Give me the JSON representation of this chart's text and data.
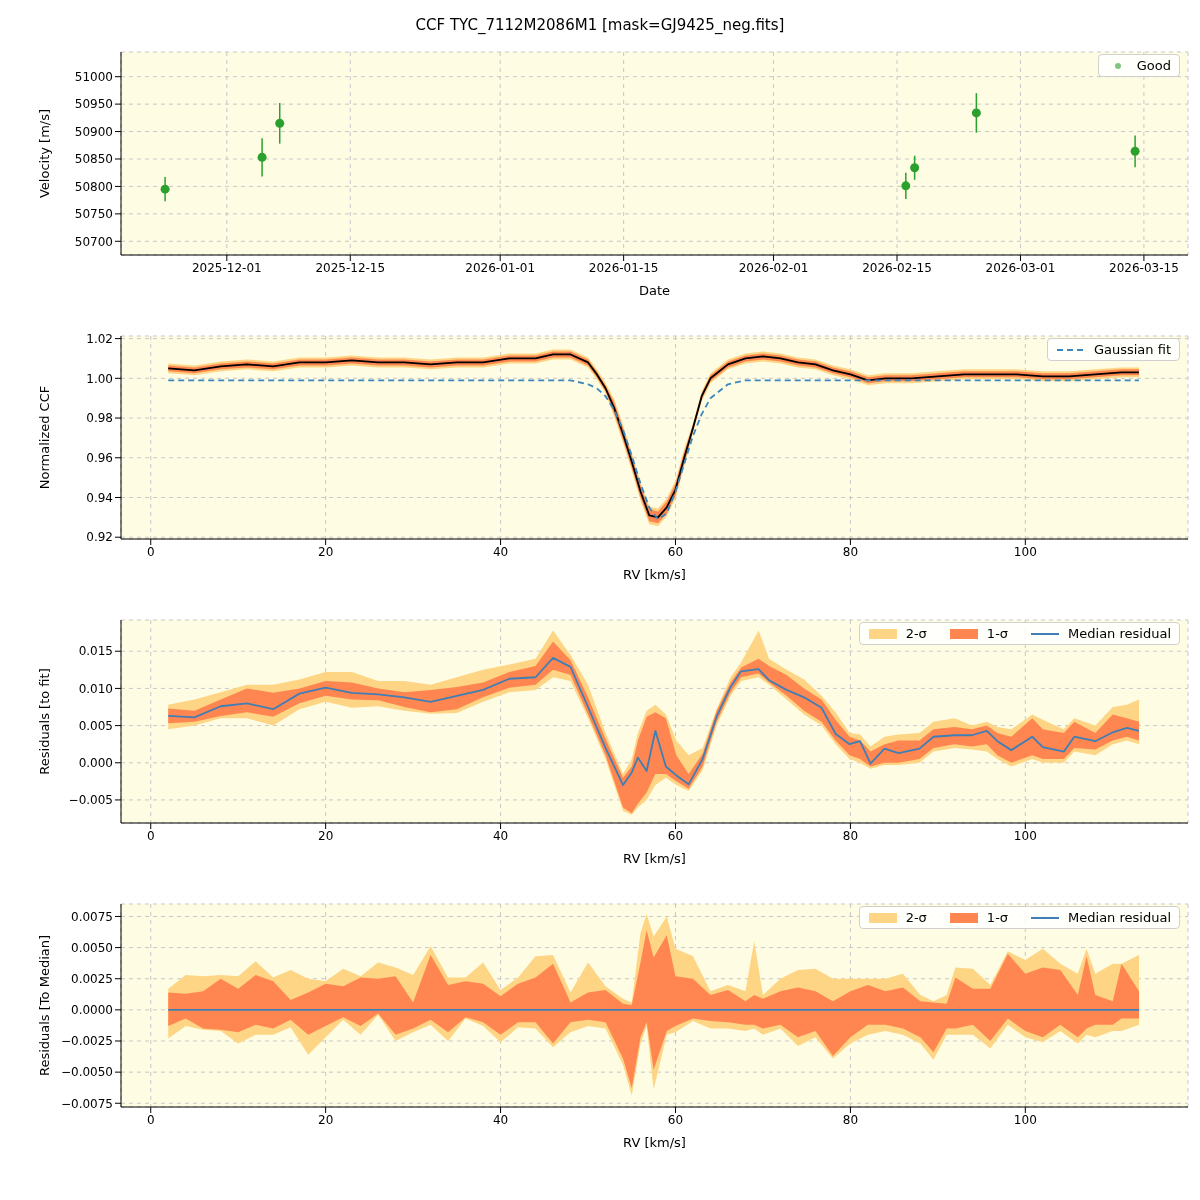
{
  "chart_data": [
    {
      "type": "scatter",
      "title": "CCF TYC_7112M2086M1 [mask=GJ9425_neg.fits]",
      "xlabel": "Date",
      "ylabel": "Velocity [m/s]",
      "x": [
        "2025-11-24",
        "2025-12-05",
        "2025-12-07",
        "2026-02-16",
        "2026-02-17",
        "2026-02-24",
        "2026-03-14"
      ],
      "series": [
        {
          "name": "Good",
          "color": "#2ca02c",
          "values": [
            50795,
            50853,
            50915,
            50801,
            50834,
            50934,
            50864
          ],
          "errors": [
            22,
            35,
            37,
            24,
            22,
            36,
            29
          ]
        }
      ],
      "xlim": [
        "2025-11-19",
        "2026-03-20"
      ],
      "xticks": [
        "2025-12-01",
        "2025-12-15",
        "2026-01-01",
        "2026-01-15",
        "2026-02-01",
        "2026-02-15",
        "2026-03-01",
        "2026-03-15"
      ],
      "ylim": [
        50675,
        51045
      ],
      "yticks": [
        50700,
        50750,
        50800,
        50850,
        50900,
        50950,
        51000
      ],
      "grid": true,
      "legend": "top right",
      "marker": "circle"
    },
    {
      "type": "line",
      "xlabel": "RV [km/s]",
      "ylabel": "Normalized CCF",
      "x": [
        2,
        5,
        8,
        11,
        14,
        17,
        20,
        23,
        26,
        29,
        32,
        35,
        38,
        41,
        44,
        46,
        48,
        50,
        51,
        52,
        53,
        54,
        55,
        56,
        57,
        58,
        59,
        60,
        61,
        62,
        63,
        64,
        66,
        68,
        70,
        72,
        74,
        76,
        78,
        80,
        82,
        84,
        87,
        90,
        93,
        96,
        99,
        102,
        105,
        108,
        111,
        113
      ],
      "series": [
        {
          "type": "area",
          "color": "#fdd585",
          "values": [
            null,
            null,
            null,
            null,
            null,
            null,
            null,
            null,
            null,
            null,
            null,
            null,
            null,
            null,
            null,
            null,
            null,
            null,
            null,
            null,
            null,
            null,
            null,
            null,
            null,
            null,
            null,
            null,
            null,
            null,
            null,
            null,
            null,
            null,
            null,
            null,
            null,
            null,
            null,
            null,
            null,
            null,
            null,
            null,
            null,
            null,
            null,
            null,
            null,
            null,
            null,
            null
          ],
          "lower": [
            1.0025,
            1.0015,
            1.0035,
            1.0045,
            1.0035,
            1.0055,
            1.0055,
            1.0065,
            1.0055,
            1.0055,
            1.0045,
            1.0055,
            1.0055,
            1.0075,
            1.0075,
            1.0095,
            1.0095,
            1.0055,
            0.9995,
            0.9925,
            0.9805,
            0.9675,
            0.9535,
            0.9385,
            0.9265,
            0.9255,
            0.9305,
            0.9395,
            0.9555,
            0.9725,
            0.9885,
            0.9975,
            1.0045,
            1.0075,
            1.0085,
            1.0075,
            1.0055,
            1.0045,
            1.0015,
            0.9995,
            0.9965,
            0.9975,
            0.9975,
            0.9985,
            0.9995,
            0.9995,
            0.9995,
            0.9985,
            0.9985,
            0.9995,
            1.0005,
            1.0005
          ],
          "upper": [
            1.0075,
            1.0065,
            1.0085,
            1.0095,
            1.0085,
            1.0105,
            1.0105,
            1.0115,
            1.0105,
            1.0105,
            1.0095,
            1.0105,
            1.0105,
            1.0125,
            1.0125,
            1.0145,
            1.0145,
            1.0105,
            1.0045,
            0.9975,
            0.9895,
            0.9765,
            0.9625,
            0.9475,
            0.9355,
            0.9345,
            0.9395,
            0.9485,
            0.9645,
            0.9775,
            0.9935,
            1.0025,
            1.0095,
            1.0125,
            1.0135,
            1.0125,
            1.0105,
            1.0095,
            1.0065,
            1.0045,
            1.0015,
            1.0025,
            1.0025,
            1.0035,
            1.0045,
            1.0045,
            1.0045,
            1.0035,
            1.0035,
            1.0045,
            1.0055,
            1.0055
          ]
        },
        {
          "type": "area",
          "color": "#ff8650",
          "values": [
            null,
            null,
            null,
            null,
            null,
            null,
            null,
            null,
            null,
            null,
            null,
            null,
            null,
            null,
            null,
            null,
            null,
            null,
            null,
            null,
            null,
            null,
            null,
            null,
            null,
            null,
            null,
            null,
            null,
            null,
            null,
            null,
            null,
            null,
            null,
            null,
            null,
            null,
            null,
            null,
            null,
            null,
            null,
            null,
            null,
            null,
            null,
            null,
            null,
            null,
            null,
            null
          ],
          "lower": [
            1.0035,
            1.0025,
            1.0045,
            1.0055,
            1.0045,
            1.0065,
            1.0065,
            1.0075,
            1.0065,
            1.0065,
            1.0055,
            1.0065,
            1.0065,
            1.0085,
            1.0085,
            1.0105,
            1.0105,
            1.0065,
            1.0005,
            0.9935,
            0.982,
            0.969,
            0.955,
            0.94,
            0.928,
            0.927,
            0.932,
            0.941,
            0.957,
            0.9735,
            0.9895,
            0.9985,
            1.0055,
            1.0085,
            1.0095,
            1.0085,
            1.0065,
            1.0055,
            1.0025,
            1.0005,
            0.9975,
            0.9985,
            0.9985,
            0.9995,
            1.0005,
            1.0005,
            1.0005,
            0.9995,
            0.9995,
            1.0005,
            1.0015,
            1.0015
          ],
          "upper": [
            1.0065,
            1.0055,
            1.0075,
            1.0085,
            1.0075,
            1.0095,
            1.0095,
            1.0105,
            1.0095,
            1.0095,
            1.0085,
            1.0095,
            1.0095,
            1.0115,
            1.0115,
            1.0135,
            1.0135,
            1.0095,
            1.0035,
            0.9965,
            0.988,
            0.975,
            0.961,
            0.946,
            0.934,
            0.933,
            0.938,
            0.947,
            0.963,
            0.9765,
            0.9925,
            1.0015,
            1.0085,
            1.0115,
            1.0125,
            1.0115,
            1.0095,
            1.0085,
            1.0055,
            1.0035,
            1.0005,
            1.0015,
            1.0015,
            1.0025,
            1.0035,
            1.0035,
            1.0035,
            1.0025,
            1.0025,
            1.0035,
            1.0045,
            1.0045
          ]
        },
        {
          "color": "#000000",
          "values": [
            1.005,
            1.004,
            1.006,
            1.007,
            1.006,
            1.008,
            1.008,
            1.009,
            1.008,
            1.008,
            1.007,
            1.008,
            1.008,
            1.01,
            1.01,
            1.012,
            1.012,
            1.008,
            1.002,
            0.995,
            0.985,
            0.972,
            0.958,
            0.943,
            0.931,
            0.93,
            0.935,
            0.944,
            0.96,
            0.975,
            0.991,
            1.0,
            1.007,
            1.01,
            1.011,
            1.01,
            1.008,
            1.007,
            1.004,
            1.002,
            0.999,
            1.0,
            1.0,
            1.001,
            1.002,
            1.002,
            1.002,
            1.001,
            1.001,
            1.002,
            1.003,
            1.003
          ]
        },
        {
          "name": "Gaussian fit",
          "color": "#3a87c0",
          "line_style": "dashed",
          "values": [
            0.999,
            0.999,
            0.999,
            0.999,
            0.999,
            0.999,
            0.999,
            0.999,
            0.999,
            0.999,
            0.999,
            0.999,
            0.999,
            0.999,
            0.999,
            0.999,
            0.999,
            0.997,
            0.995,
            0.991,
            0.984,
            0.974,
            0.961,
            0.947,
            0.935,
            0.929,
            0.932,
            0.943,
            0.957,
            0.971,
            0.982,
            0.99,
            0.997,
            0.999,
            0.999,
            0.999,
            0.999,
            0.999,
            0.999,
            0.999,
            0.999,
            0.999,
            0.999,
            0.999,
            0.999,
            0.999,
            0.999,
            0.999,
            0.999,
            0.999,
            0.999,
            0.999
          ]
        }
      ],
      "xlim": [
        -3.4,
        118.6
      ],
      "xticks": [
        0,
        20,
        40,
        60,
        80,
        100
      ],
      "ylim": [
        0.9191,
        1.0213
      ],
      "yticks": [
        {
          "value": 0.92,
          "label": "0.92"
        },
        {
          "value": 0.94,
          "label": "0.94"
        },
        {
          "value": 0.96,
          "label": "0.96"
        },
        {
          "value": 0.98,
          "label": "0.98"
        },
        {
          "value": 1.0,
          "label": "1.00"
        },
        {
          "value": 1.02,
          "label": "1.02"
        }
      ],
      "grid": true,
      "legend": "top right"
    },
    {
      "type": "line",
      "xlabel": "RV [km/s]",
      "ylabel": "Residuals [to fit]",
      "x": [
        2,
        5,
        8,
        11,
        14,
        17,
        20,
        23,
        26,
        29,
        32,
        35,
        38,
        41,
        44,
        46,
        48,
        50,
        52,
        54,
        55,
        55.7,
        56.7,
        57.7,
        58.9,
        60.1,
        61.5,
        63.1,
        64.7,
        66.3,
        67.5,
        69.5,
        70.7,
        72.7,
        74.7,
        76.7,
        78.3,
        79.9,
        81.1,
        82.3,
        83.9,
        85.5,
        87.9,
        89.5,
        91.9,
        93.9,
        95.6,
        96.8,
        98.4,
        100.8,
        102,
        104.4,
        105.6,
        108,
        110,
        111.6,
        113
      ],
      "series": [
        {
          "type": "area",
          "name": "2-σ",
          "color": "#fdd585",
          "values": [
            null,
            null,
            null,
            null,
            null,
            null,
            null,
            null,
            null,
            null,
            null,
            null,
            null,
            null,
            null,
            null,
            null,
            null,
            null,
            null,
            null,
            null,
            null,
            null,
            null,
            null,
            null,
            null,
            null,
            null,
            null,
            null,
            null,
            null,
            null,
            null,
            null,
            null,
            null,
            null,
            null,
            null,
            null,
            null,
            null,
            null,
            null,
            null,
            null,
            null,
            null,
            null,
            null,
            null,
            null,
            null,
            null
          ],
          "lower": [
            0.0045,
            0.005,
            0.006,
            0.006,
            0.005,
            0.0072,
            0.0082,
            0.0074,
            0.0076,
            0.007,
            0.0066,
            0.0067,
            0.0082,
            0.0095,
            0.0098,
            0.0115,
            0.011,
            0.006,
            0.0005,
            -0.0065,
            -0.007,
            -0.006,
            -0.005,
            -0.003,
            -0.002,
            -0.003,
            -0.0038,
            -0.001,
            0.005,
            0.009,
            0.011,
            0.0115,
            0.0105,
            0.0085,
            0.0065,
            0.005,
            0.0025,
            0.0005,
            0.0,
            -0.0008,
            -0.0003,
            -0.0003,
            0.0,
            0.0015,
            0.002,
            0.0018,
            0.0015,
            0.0005,
            -0.0005,
            0.0005,
            0.0,
            0.0,
            0.0015,
            0.001,
            0.0025,
            0.003,
            0.0025
          ],
          "upper": [
            0.0078,
            0.0085,
            0.0095,
            0.0105,
            0.0105,
            0.0112,
            0.0122,
            0.0122,
            0.011,
            0.011,
            0.0105,
            0.0115,
            0.0125,
            0.0132,
            0.014,
            0.0178,
            0.0145,
            0.0105,
            0.004,
            -0.0015,
            0.0005,
            0.004,
            0.007,
            0.0078,
            0.0065,
            0.003,
            0.001,
            0.002,
            0.0072,
            0.0115,
            0.0135,
            0.0178,
            0.014,
            0.0125,
            0.0112,
            0.009,
            0.0068,
            0.004,
            0.0038,
            0.0022,
            0.0035,
            0.0038,
            0.004,
            0.0055,
            0.006,
            0.005,
            0.0055,
            0.0048,
            0.0045,
            0.0065,
            0.0058,
            0.0045,
            0.006,
            0.005,
            0.0075,
            0.0078,
            0.0085
          ]
        },
        {
          "type": "area",
          "name": "1-σ",
          "color": "#ff8650",
          "values": [
            null,
            null,
            null,
            null,
            null,
            null,
            null,
            null,
            null,
            null,
            null,
            null,
            null,
            null,
            null,
            null,
            null,
            null,
            null,
            null,
            null,
            null,
            null,
            null,
            null,
            null,
            null,
            null,
            null,
            null,
            null,
            null,
            null,
            null,
            null,
            null,
            null,
            null,
            null,
            null,
            null,
            null,
            null,
            null,
            null,
            null,
            null,
            null,
            null,
            null,
            null,
            null,
            null,
            null,
            null,
            null,
            null
          ],
          "lower": [
            0.0053,
            0.0055,
            0.0063,
            0.0068,
            0.0062,
            0.008,
            0.009,
            0.0085,
            0.0084,
            0.0075,
            0.0068,
            0.0072,
            0.0088,
            0.0101,
            0.0105,
            0.0125,
            0.0118,
            0.0065,
            0.001,
            -0.006,
            -0.0068,
            -0.0055,
            -0.004,
            -0.0015,
            -0.0015,
            -0.0025,
            -0.0035,
            -0.0005,
            0.0055,
            0.0095,
            0.0115,
            0.012,
            0.0108,
            0.009,
            0.007,
            0.0055,
            0.003,
            0.001,
            0.0005,
            -0.0005,
            0.0,
            0.0,
            0.0005,
            0.002,
            0.0025,
            0.0022,
            0.0025,
            0.001,
            0.0,
            0.001,
            0.0005,
            0.0005,
            0.002,
            0.0018,
            0.003,
            0.0035,
            0.003
          ],
          "upper": [
            0.0073,
            0.007,
            0.0085,
            0.01,
            0.0094,
            0.01,
            0.011,
            0.0108,
            0.01,
            0.0095,
            0.0098,
            0.0102,
            0.0108,
            0.0122,
            0.013,
            0.0163,
            0.0138,
            0.0088,
            0.0032,
            -0.002,
            -0.0005,
            0.003,
            0.0062,
            0.0068,
            0.006,
            0.001,
            -0.0015,
            0.0012,
            0.007,
            0.0108,
            0.0128,
            0.014,
            0.013,
            0.0118,
            0.01,
            0.0085,
            0.0058,
            0.0035,
            0.003,
            0.0015,
            0.0025,
            0.003,
            0.003,
            0.0045,
            0.0048,
            0.0045,
            0.005,
            0.004,
            0.0035,
            0.006,
            0.0045,
            0.004,
            0.0055,
            0.004,
            0.0065,
            0.006,
            0.0055
          ]
        },
        {
          "name": "Median residual",
          "color": "#3f7fb5",
          "values": [
            0.0063,
            0.0061,
            0.0076,
            0.008,
            0.0072,
            0.0093,
            0.0101,
            0.0094,
            0.0092,
            0.0088,
            0.0082,
            0.009,
            0.0098,
            0.0113,
            0.0115,
            0.0141,
            0.0129,
            0.0075,
            0.002,
            -0.003,
            -0.0013,
            0.0007,
            -0.0011,
            0.0043,
            -0.0005,
            -0.0017,
            -0.0029,
            0.0005,
            0.0062,
            0.0102,
            0.0123,
            0.0126,
            0.0111,
            0.0098,
            0.0088,
            0.0074,
            0.0039,
            0.0025,
            0.0029,
            -0.0001,
            0.0019,
            0.0013,
            0.0019,
            0.0035,
            0.0037,
            0.0037,
            0.0043,
            0.0029,
            0.0017,
            0.0035,
            0.0021,
            0.0015,
            0.0035,
            0.0029,
            0.0041,
            0.0047,
            0.0043
          ]
        }
      ],
      "xlim": [
        -3.4,
        118.6
      ],
      "xticks": [
        0,
        20,
        40,
        60,
        80,
        100
      ],
      "ylim": [
        -0.0081,
        0.0192
      ],
      "yticks": [
        {
          "value": -0.005,
          "label": "−0.005"
        },
        {
          "value": 0,
          "label": "0.000"
        },
        {
          "value": 0.005,
          "label": "0.005"
        },
        {
          "value": 0.01,
          "label": "0.010"
        },
        {
          "value": 0.015,
          "label": "0.015"
        }
      ],
      "grid": true,
      "legend": "top right"
    },
    {
      "type": "line",
      "xlabel": "RV [km/s]",
      "ylabel": "Residuals [To Median]",
      "x": [
        2,
        4,
        6,
        8,
        10,
        12,
        14,
        16,
        18,
        20,
        22,
        24,
        26,
        28,
        30,
        32,
        34,
        36,
        38,
        40,
        42,
        44,
        46,
        48,
        50,
        52,
        54,
        55,
        56,
        56.7,
        57.5,
        59,
        60,
        62,
        64,
        66,
        68,
        69,
        70,
        72,
        74,
        76,
        78,
        80,
        82,
        84,
        86,
        88,
        89.5,
        91,
        92,
        94,
        96,
        98,
        100,
        102,
        104,
        106,
        107,
        108,
        110,
        111,
        113
      ],
      "series": [
        {
          "type": "area",
          "name": "2-σ",
          "color": "#fdd585",
          "values": [
            null,
            null,
            null,
            null,
            null,
            null,
            null,
            null,
            null,
            null,
            null,
            null,
            null,
            null,
            null,
            null,
            null,
            null,
            null,
            null,
            null,
            null,
            null,
            null,
            null,
            null,
            null,
            null,
            null,
            null,
            null,
            null,
            null,
            null,
            null,
            null,
            null,
            null,
            null,
            null,
            null,
            null,
            null,
            null,
            null,
            null,
            null,
            null,
            null,
            null,
            null,
            null,
            null,
            null,
            null,
            null,
            null,
            null,
            null,
            null,
            null,
            null,
            null
          ],
          "lower": [
            -0.0023,
            -0.0013,
            -0.0016,
            -0.0017,
            -0.0027,
            -0.002,
            -0.002,
            -0.0014,
            -0.0036,
            -0.0022,
            -0.0008,
            -0.002,
            -0.0004,
            -0.0025,
            -0.0018,
            -0.0012,
            -0.0025,
            -0.0007,
            -0.0013,
            -0.0026,
            -0.0014,
            -0.0015,
            -0.003,
            -0.0018,
            -0.0013,
            -0.0015,
            -0.0044,
            -0.0069,
            -0.0027,
            -0.0013,
            -0.0064,
            -0.002,
            -0.0018,
            -0.0009,
            -0.0015,
            -0.0015,
            -0.0017,
            -0.0015,
            -0.002,
            -0.0015,
            -0.0029,
            -0.0022,
            -0.0039,
            -0.0027,
            -0.002,
            -0.0017,
            -0.002,
            -0.0027,
            -0.004,
            -0.002,
            -0.002,
            -0.002,
            -0.0031,
            -0.0012,
            -0.0022,
            -0.0026,
            -0.0017,
            -0.0027,
            -0.002,
            -0.0022,
            -0.0017,
            -0.0017,
            -0.0012
          ],
          "upper": [
            0.0017,
            0.0028,
            0.0027,
            0.0028,
            0.0027,
            0.0039,
            0.0026,
            0.0032,
            0.0025,
            0.0023,
            0.0033,
            0.0027,
            0.0038,
            0.0034,
            0.0028,
            0.0051,
            0.0026,
            0.0026,
            0.0038,
            0.0016,
            0.0026,
            0.0043,
            0.0044,
            0.0014,
            0.0038,
            0.0019,
            0.0009,
            0.0006,
            0.0062,
            0.0077,
            0.0059,
            0.0075,
            0.0049,
            0.0043,
            0.0015,
            0.002,
            0.0015,
            0.0055,
            0.0012,
            0.0025,
            0.0032,
            0.0033,
            0.0025,
            0.0025,
            0.0025,
            0.0025,
            0.0029,
            0.0012,
            0.0007,
            0.0012,
            0.0034,
            0.0033,
            0.002,
            0.0047,
            0.004,
            0.0049,
            0.0037,
            0.0029,
            0.0049,
            0.0029,
            0.0037,
            0.0037,
            0.0044
          ]
        },
        {
          "type": "area",
          "name": "1-σ",
          "color": "#ff8650",
          "values": [
            null,
            null,
            null,
            null,
            null,
            null,
            null,
            null,
            null,
            null,
            null,
            null,
            null,
            null,
            null,
            null,
            null,
            null,
            null,
            null,
            null,
            null,
            null,
            null,
            null,
            null,
            null,
            null,
            null,
            null,
            null,
            null,
            null,
            null,
            null,
            null,
            null,
            null,
            null,
            null,
            null,
            null,
            null,
            null,
            null,
            null,
            null,
            null,
            null,
            null,
            null,
            null,
            null,
            null,
            null,
            null,
            null,
            null,
            null,
            null,
            null,
            null,
            null
          ],
          "lower": [
            -0.0013,
            -0.0007,
            -0.0015,
            -0.0016,
            -0.0018,
            -0.0012,
            -0.0015,
            -0.0008,
            -0.002,
            -0.0013,
            -0.0006,
            -0.0013,
            -0.0003,
            -0.002,
            -0.0015,
            -0.0008,
            -0.0018,
            -0.0006,
            -0.001,
            -0.002,
            -0.001,
            -0.001,
            -0.0027,
            -0.001,
            -0.0008,
            -0.001,
            -0.0039,
            -0.0063,
            -0.0022,
            -0.001,
            -0.0048,
            -0.0017,
            -0.0013,
            -0.0007,
            -0.0009,
            -0.001,
            -0.0012,
            -0.0012,
            -0.0015,
            -0.0012,
            -0.0022,
            -0.0017,
            -0.0037,
            -0.0022,
            -0.0012,
            -0.0012,
            -0.0015,
            -0.0022,
            -0.0034,
            -0.0015,
            -0.0015,
            -0.0012,
            -0.0025,
            -0.0007,
            -0.0017,
            -0.0022,
            -0.0012,
            -0.0022,
            -0.0015,
            -0.0012,
            -0.0012,
            -0.0007,
            -0.0007
          ],
          "upper": [
            0.0014,
            0.0013,
            0.0015,
            0.0025,
            0.0017,
            0.0028,
            0.0023,
            0.0008,
            0.0014,
            0.0021,
            0.0019,
            0.0026,
            0.0025,
            0.0027,
            0.0006,
            0.0044,
            0.002,
            0.0023,
            0.0021,
            0.0011,
            0.0021,
            0.0026,
            0.0037,
            0.0006,
            0.0014,
            0.0016,
            0.0005,
            0.0004,
            0.0038,
            0.0064,
            0.0042,
            0.006,
            0.0027,
            0.0025,
            0.0012,
            0.0016,
            0.0007,
            0.0012,
            0.0009,
            0.0015,
            0.0018,
            0.0015,
            0.0007,
            0.0015,
            0.002,
            0.0015,
            0.0018,
            0.0007,
            0.0006,
            0.0005,
            0.0026,
            0.0017,
            0.0017,
            0.0045,
            0.0029,
            0.0034,
            0.0032,
            0.0012,
            0.0043,
            0.0012,
            0.0007,
            0.0037,
            0.0015
          ]
        },
        {
          "name": "Median residual",
          "color": "#3f7fb5",
          "values": [
            0,
            0,
            0,
            0,
            0,
            0,
            0,
            0,
            0,
            0,
            0,
            0,
            0,
            0,
            0,
            0,
            0,
            0,
            0,
            0,
            0,
            0,
            0,
            0,
            0,
            0,
            0,
            0,
            0,
            0,
            0,
            0,
            0,
            0,
            0,
            0,
            0,
            0,
            0,
            0,
            0,
            0,
            0,
            0,
            0,
            0,
            0,
            0,
            0,
            0,
            0,
            0,
            0,
            0,
            0,
            0,
            0,
            0,
            0,
            0,
            0,
            0,
            0
          ]
        }
      ],
      "xlim": [
        -3.4,
        118.6
      ],
      "xticks": [
        0,
        20,
        40,
        60,
        80,
        100
      ],
      "ylim": [
        -0.0078,
        0.0085
      ],
      "yticks": [
        {
          "value": -0.0075,
          "label": "−0.0075"
        },
        {
          "value": -0.005,
          "label": "−0.0050"
        },
        {
          "value": -0.0025,
          "label": "−0.0025"
        },
        {
          "value": 0,
          "label": "0.0000"
        },
        {
          "value": 0.0025,
          "label": "0.0025"
        },
        {
          "value": 0.005,
          "label": "0.0050"
        },
        {
          "value": 0.0075,
          "label": "0.0075"
        }
      ],
      "grid": true,
      "legend": "top right"
    }
  ]
}
